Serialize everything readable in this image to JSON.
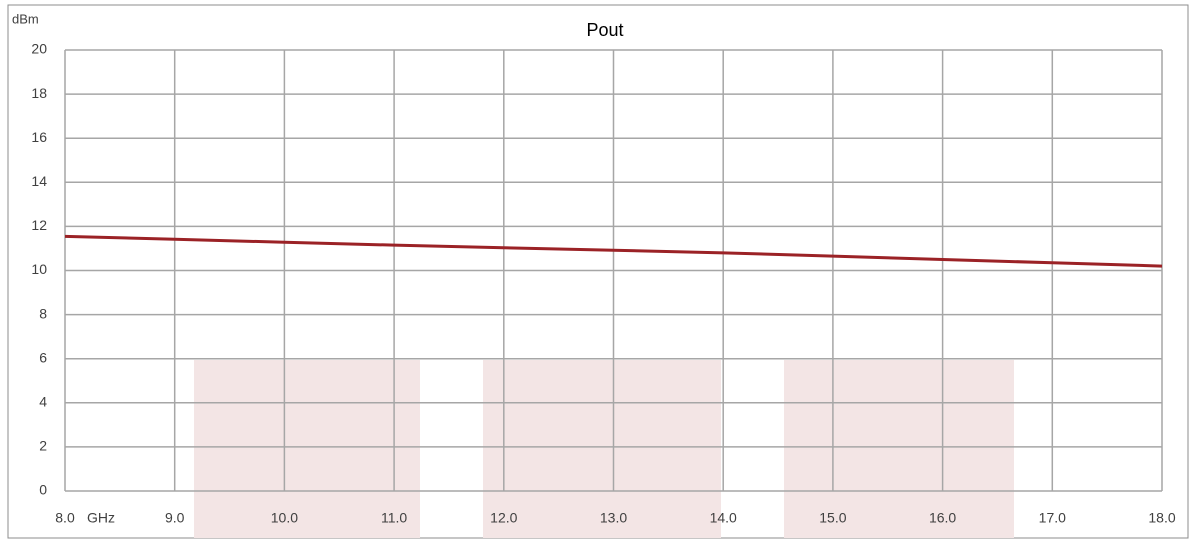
{
  "chart_data": {
    "type": "line",
    "title": "Pout",
    "y_label": "dBm",
    "x_label": "GHz",
    "x": [
      8,
      9,
      10,
      11,
      12,
      13,
      14,
      15,
      16,
      17,
      18
    ],
    "series": [
      {
        "name": "Pout",
        "color": "#9b2226",
        "values": [
          11.55,
          11.42,
          11.28,
          11.15,
          11.03,
          10.92,
          10.8,
          10.65,
          10.5,
          10.35,
          10.2
        ]
      }
    ],
    "xlim": [
      8,
      18
    ],
    "xticks": [
      {
        "value": 8,
        "label": "8.0"
      },
      {
        "value": 9,
        "label": "9.0"
      },
      {
        "value": 10,
        "label": "10.0"
      },
      {
        "value": 11,
        "label": "11.0"
      },
      {
        "value": 12,
        "label": "12.0"
      },
      {
        "value": 13,
        "label": "13.0"
      },
      {
        "value": 14,
        "label": "14.0"
      },
      {
        "value": 15,
        "label": "15.0"
      },
      {
        "value": 16,
        "label": "16.0"
      },
      {
        "value": 17,
        "label": "17.0"
      },
      {
        "value": 18,
        "label": "18.0"
      }
    ],
    "ylim": [
      0,
      20
    ],
    "yticks": [
      0,
      2,
      4,
      6,
      8,
      10,
      12,
      14,
      16,
      18,
      20
    ],
    "grid": true
  }
}
